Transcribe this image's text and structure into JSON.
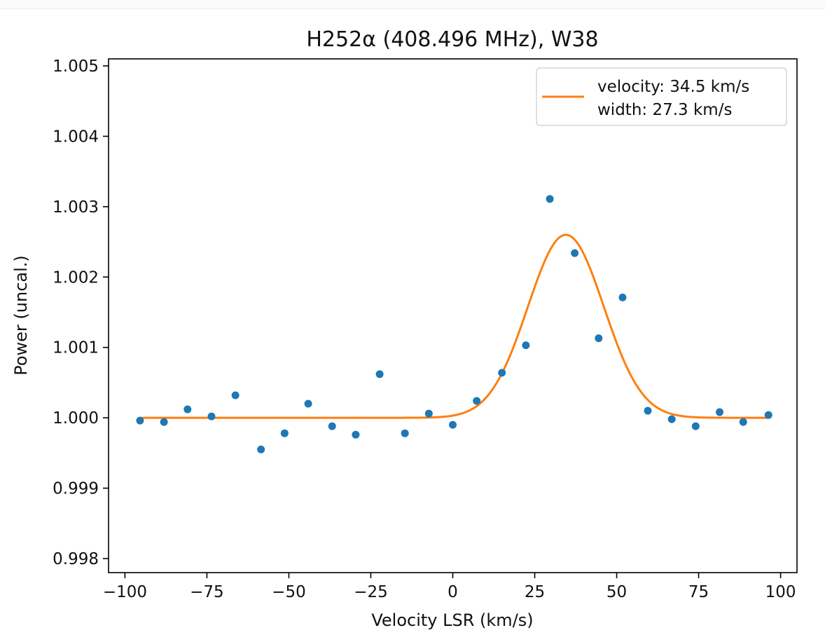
{
  "chart_data": {
    "type": "scatter",
    "title": "H252α (408.496 MHz), W38",
    "xlabel": "Velocity LSR (km/s)",
    "ylabel": "Power (uncal.)",
    "xlim": [
      -105,
      105
    ],
    "ylim": [
      0.9978,
      1.0051
    ],
    "xticks": [
      -100,
      -75,
      -50,
      -25,
      0,
      25,
      50,
      75,
      100
    ],
    "xtick_labels": [
      "−100",
      "−75",
      "−50",
      "−25",
      "0",
      "25",
      "50",
      "75",
      "100"
    ],
    "yticks": [
      0.998,
      0.999,
      1.0,
      1.001,
      1.002,
      1.003,
      1.004,
      1.005
    ],
    "ytick_labels": [
      "0.998",
      "0.999",
      "1.000",
      "1.001",
      "1.002",
      "1.003",
      "1.004",
      "1.005"
    ],
    "grid": false,
    "legend_position": "top-right",
    "series": [
      {
        "kind": "scatter",
        "color": "#1f77b4",
        "x": [
          -95.4,
          -88.1,
          -80.9,
          -73.6,
          -66.3,
          -58.5,
          -51.3,
          -44.1,
          -36.8,
          -29.6,
          -22.3,
          -14.6,
          -7.3,
          0.0,
          7.3,
          15.0,
          22.3,
          29.6,
          37.2,
          44.5,
          51.8,
          59.5,
          66.8,
          74.1,
          81.4,
          88.6,
          96.3
        ],
        "y": [
          0.99996,
          0.99994,
          1.00012,
          1.00002,
          1.00032,
          0.99955,
          0.99978,
          1.0002,
          0.99988,
          0.99976,
          1.00062,
          0.99978,
          1.00006,
          0.9999,
          1.00024,
          1.00064,
          1.00103,
          1.00311,
          1.00234,
          1.00113,
          1.00171,
          1.0001,
          0.99998,
          0.99988,
          1.00008,
          0.99994,
          1.00004
        ]
      },
      {
        "name": "velocity: 34.5 km/s\nwidth: 27.3 km/s",
        "kind": "gaussian-fit",
        "color": "#ff7f0e",
        "baseline": 1.0,
        "amplitude": 0.0026,
        "center": 34.5,
        "fwhm": 27.3,
        "x_range": [
          -95.4,
          96.3
        ]
      }
    ],
    "legend_lines": [
      "velocity: 34.5 km/s",
      "width: 27.3 km/s"
    ]
  }
}
